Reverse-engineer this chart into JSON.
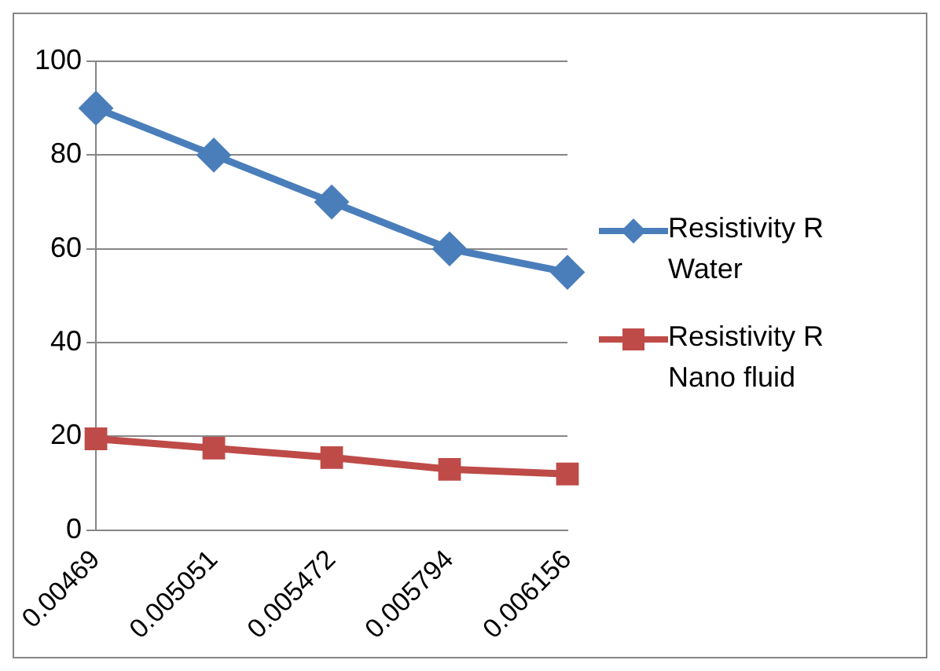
{
  "chart_data": {
    "type": "line",
    "categories": [
      "0.00469",
      "0.005051",
      "0.005472",
      "0.005794",
      "0.006156"
    ],
    "series": [
      {
        "name": "Resistivity R Water",
        "color": "#4a7ebb",
        "values": [
          90,
          80,
          70,
          60,
          55
        ],
        "marker": "diamond"
      },
      {
        "name": "Resistivity R Nano fluid",
        "color": "#be4b48",
        "values": [
          19.5,
          17.5,
          15.5,
          13,
          12
        ],
        "marker": "square"
      }
    ],
    "ylim": [
      0,
      100
    ],
    "yticks": [
      0,
      20,
      40,
      60,
      80,
      100
    ],
    "grid": "y",
    "legend": "right",
    "line_style": "solid"
  }
}
